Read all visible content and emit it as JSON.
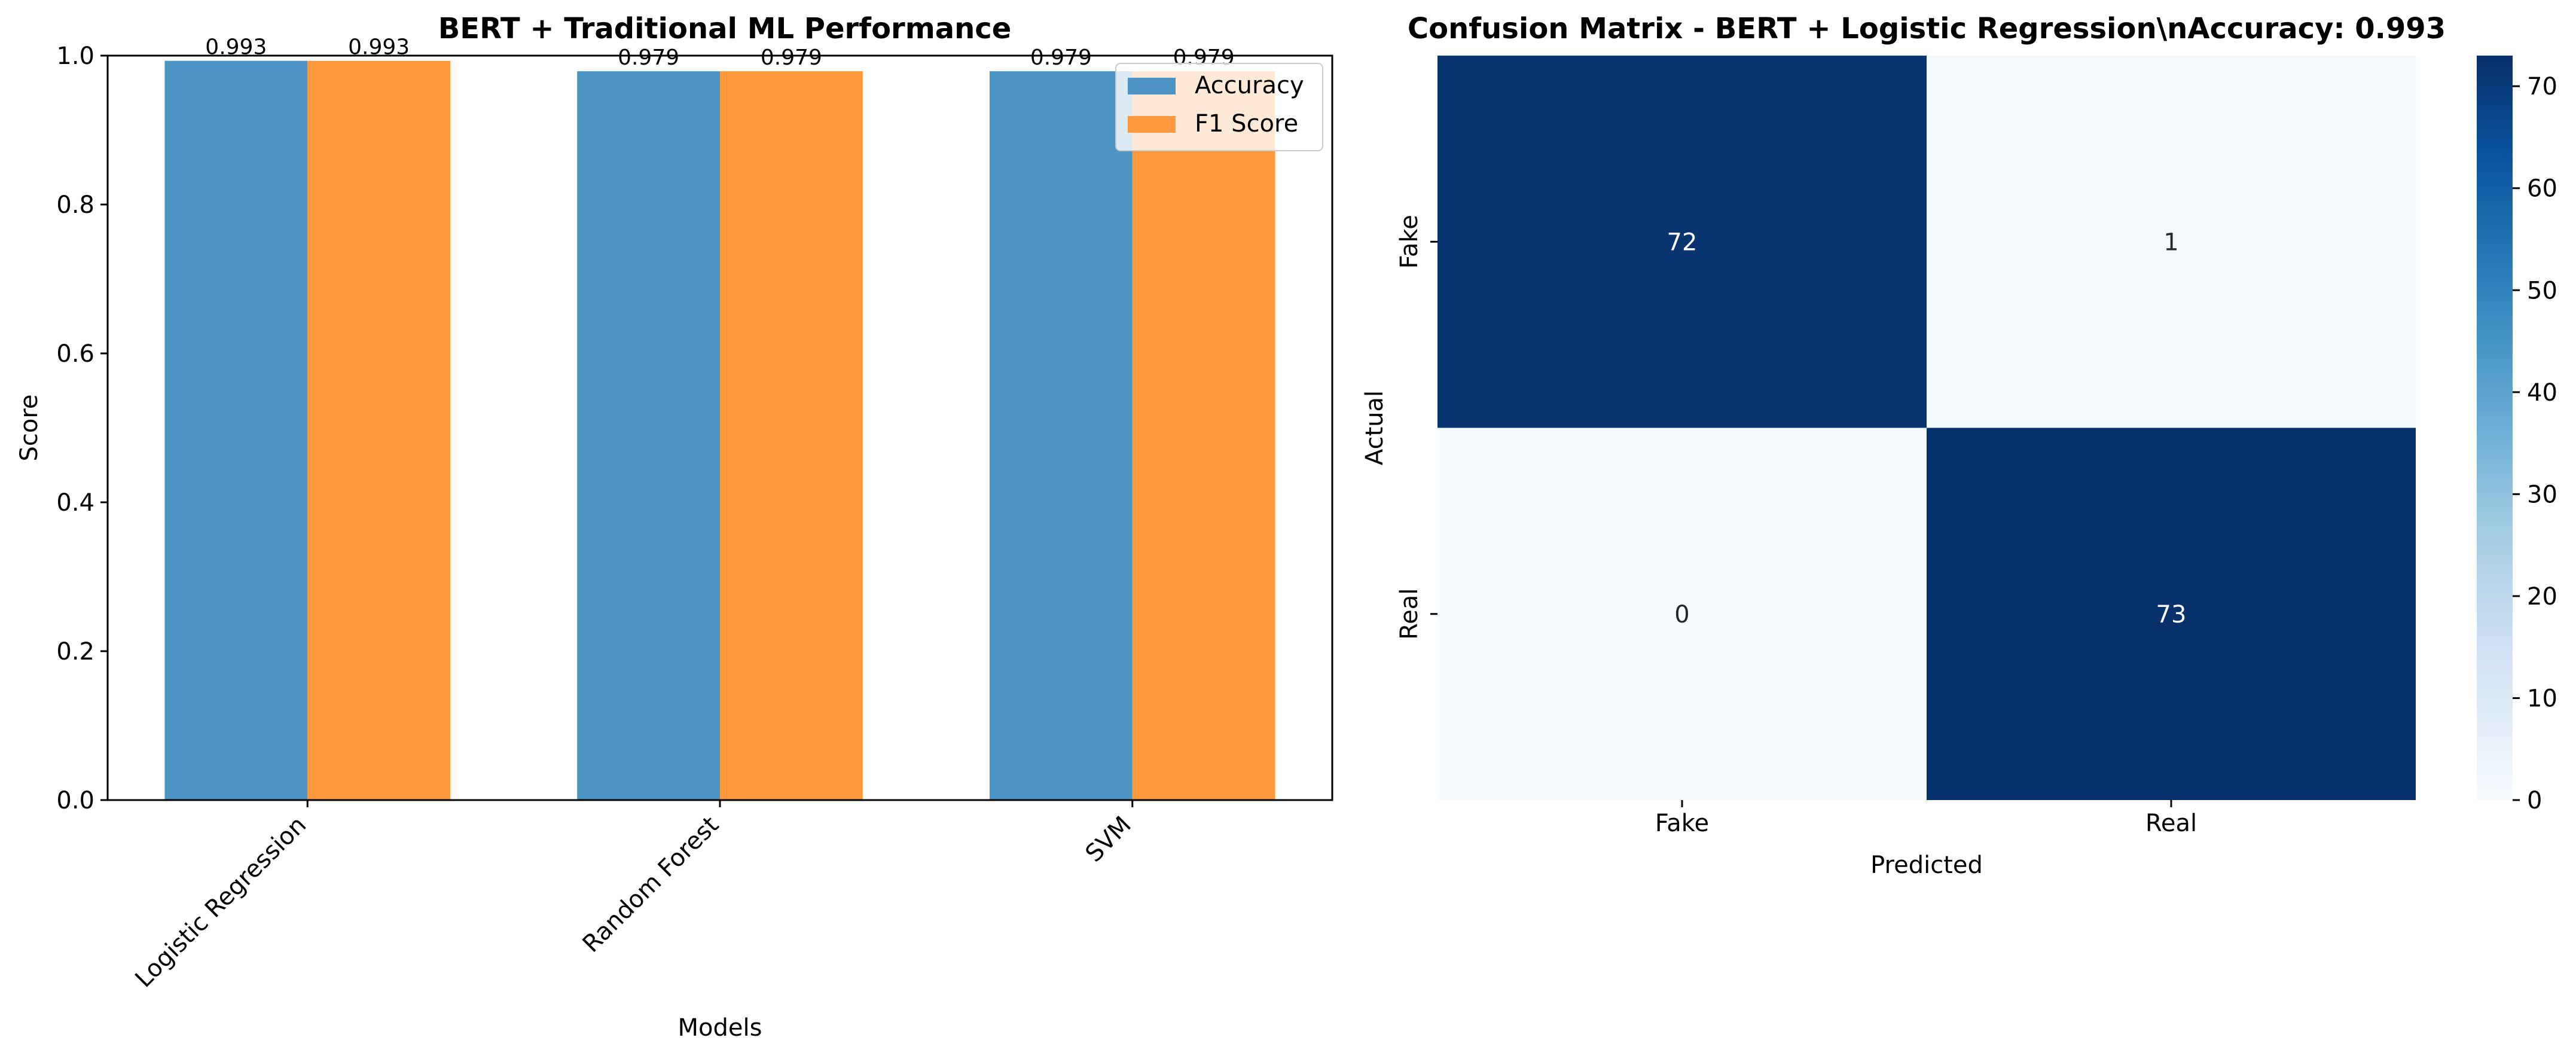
{
  "chart_data": [
    {
      "type": "bar",
      "title": "BERT + Traditional ML Performance",
      "xlabel": "Models",
      "ylabel": "Score",
      "categories": [
        "Logistic Regression",
        "Random Forest",
        "SVM"
      ],
      "series": [
        {
          "name": "Accuracy",
          "values": [
            0.993,
            0.979,
            0.979
          ],
          "color": "#4c94c4"
        },
        {
          "name": "F1 Score",
          "values": [
            0.993,
            0.979,
            0.979
          ],
          "color": "#ff983d"
        }
      ],
      "value_labels": [
        "0.993",
        "0.993",
        "0.979",
        "0.979",
        "0.979",
        "0.979"
      ],
      "ylim": [
        0,
        1
      ],
      "yticks": [
        "0.0",
        "0.2",
        "0.4",
        "0.6",
        "0.8",
        "1.0"
      ],
      "legend_position": "top-right",
      "grid": false
    },
    {
      "type": "heatmap",
      "title": "Confusion Matrix - BERT + Logistic Regression\\nAccuracy: 0.993",
      "xlabel": "Predicted",
      "ylabel": "Actual",
      "x_categories": [
        "Fake",
        "Real"
      ],
      "y_categories": [
        "Fake",
        "Real"
      ],
      "values": [
        [
          72,
          1
        ],
        [
          0,
          73
        ]
      ],
      "colormap": "Blues",
      "colorbar_range": [
        0,
        73
      ],
      "colorbar_ticks": [
        "0",
        "10",
        "20",
        "30",
        "40",
        "50",
        "60",
        "70"
      ],
      "dark_color": "#08306b",
      "light_color": "#f7fbff"
    }
  ]
}
